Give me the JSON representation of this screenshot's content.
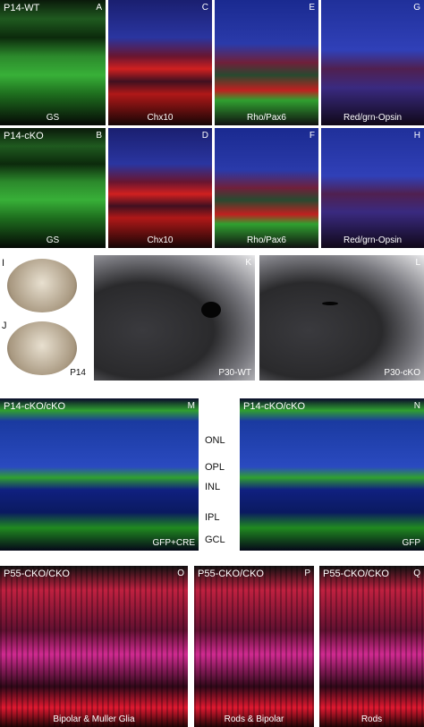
{
  "panels": [
    {
      "letter": "A",
      "label": "P14-WT",
      "caption": "GS"
    },
    {
      "letter": "C",
      "caption": "Chx10"
    },
    {
      "letter": "E",
      "caption": "Rho/Pax6"
    },
    {
      "letter": "G",
      "caption": "Red/grn-Opsin"
    },
    {
      "letter": "B",
      "label": "P14-cKO",
      "caption": "GS"
    },
    {
      "letter": "D",
      "caption": "Chx10"
    },
    {
      "letter": "F",
      "caption": "Rho/Pax6"
    },
    {
      "letter": "H",
      "caption": "Red/grn-Opsin"
    },
    {
      "letter": "I"
    },
    {
      "letter": "J",
      "caption": "P14"
    },
    {
      "letter": "K",
      "caption": "P30-WT"
    },
    {
      "letter": "L",
      "caption": "P30-cKO"
    },
    {
      "letter": "M",
      "label": "P14-cKO/cKO",
      "caption": "GFP+CRE"
    },
    {
      "letter": "N",
      "label": "P14-cKO/cKO",
      "caption": "GFP"
    },
    {
      "letter": "O",
      "label": "P55-CKO/CKO",
      "caption": "Bipolar & Muller Glia"
    },
    {
      "letter": "P",
      "label": "P55-CKO/CKO",
      "caption": "Rods & Bipolar"
    },
    {
      "letter": "Q",
      "label": "P55-CKO/CKO",
      "caption": "Rods"
    }
  ],
  "layers": [
    "ONL",
    "OPL",
    "INL",
    "IPL",
    "GCL"
  ]
}
